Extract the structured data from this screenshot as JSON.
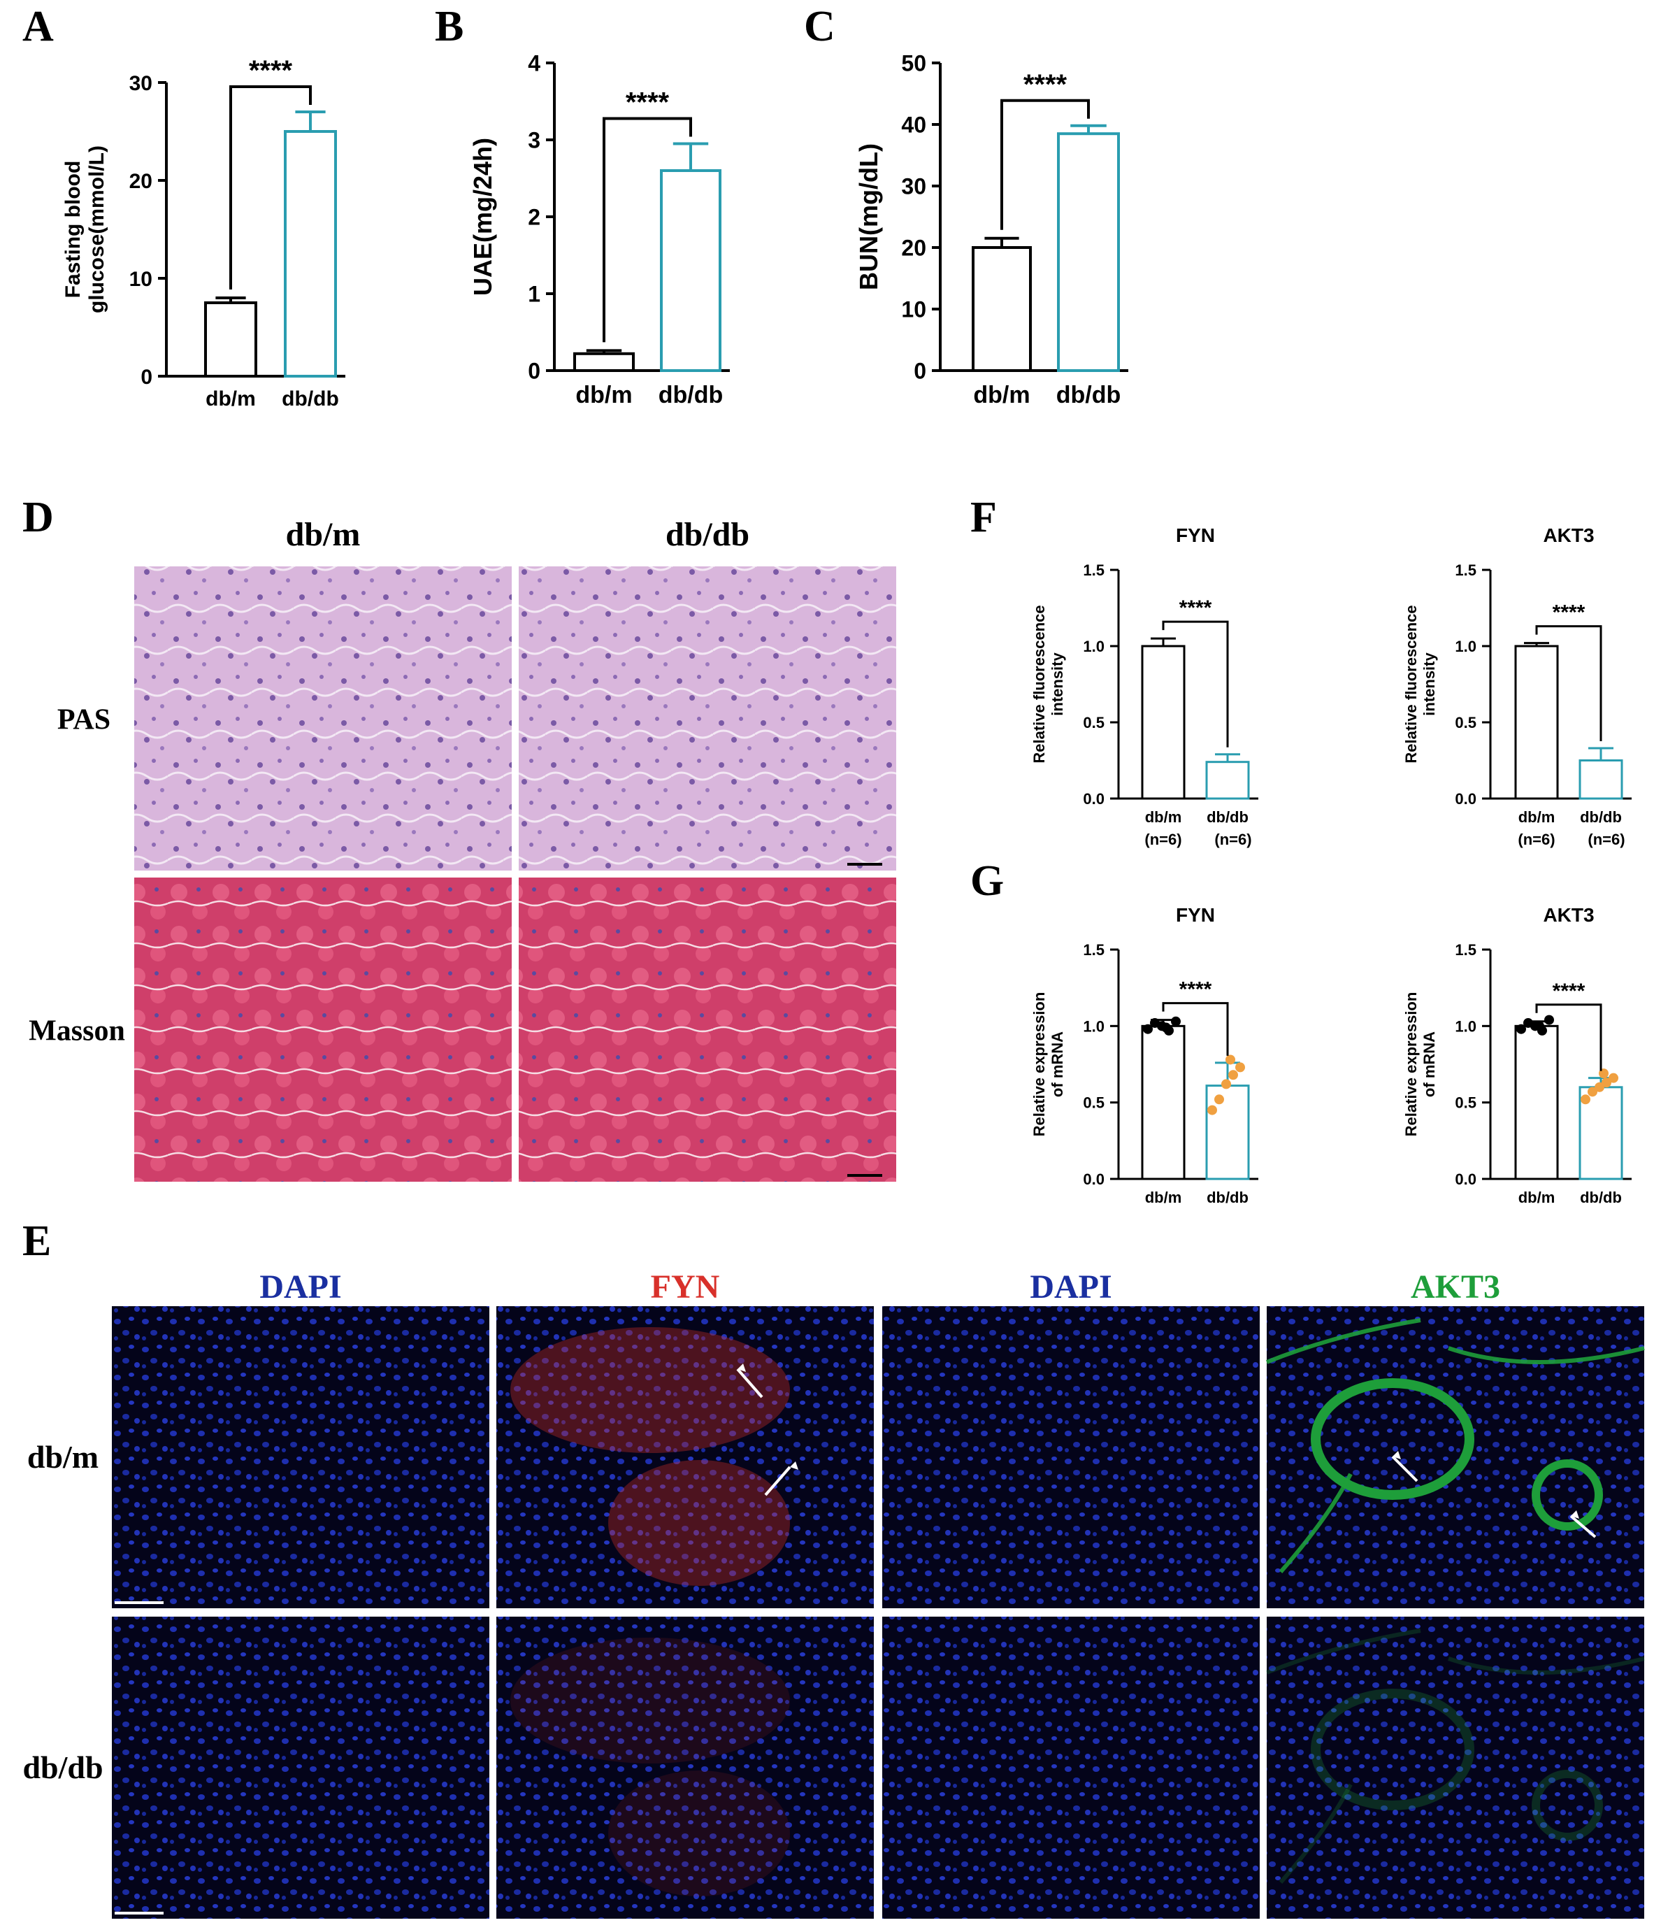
{
  "panel_letters": {
    "A": "A",
    "B": "B",
    "C": "C",
    "D": "D",
    "E": "E",
    "F": "F",
    "G": "G"
  },
  "colors": {
    "control": "#000000",
    "treated": "#2a9db0",
    "dots_treated": "#f0a040",
    "dapi": "#1a2fa0",
    "fyn": "#d8302a",
    "akt3": "#1e9e3a"
  },
  "panel_D": {
    "col_labels": [
      "db/m",
      "db/db"
    ],
    "row_labels": [
      "PAS",
      "Masson"
    ]
  },
  "panel_E": {
    "col_labels": [
      "DAPI",
      "FYN",
      "DAPI",
      "AKT3"
    ],
    "row_labels": [
      "db/m",
      "db/db"
    ]
  },
  "chart_data": [
    {
      "id": "A",
      "type": "bar",
      "categories": [
        "db/m",
        "db/db"
      ],
      "values": [
        7.5,
        25
      ],
      "errors": [
        0.5,
        2.0
      ],
      "ylabel": [
        "Fasting blood",
        "glucose(mmol/L)"
      ],
      "ylim": [
        0,
        30
      ],
      "yticks": [
        0,
        10,
        20,
        30
      ],
      "significance": "****"
    },
    {
      "id": "B",
      "type": "bar",
      "categories": [
        "db/m",
        "db/db"
      ],
      "values": [
        0.22,
        2.6
      ],
      "errors": [
        0.04,
        0.35
      ],
      "ylabel": [
        "UAE(mg/24h)"
      ],
      "ylim": [
        0,
        4
      ],
      "yticks": [
        0,
        1,
        2,
        3,
        4
      ],
      "significance": "****"
    },
    {
      "id": "C",
      "type": "bar",
      "categories": [
        "db/m",
        "db/db"
      ],
      "values": [
        20,
        38.5
      ],
      "errors": [
        1.5,
        1.3
      ],
      "ylabel": [
        "BUN(mg/dL)"
      ],
      "ylim": [
        0,
        50
      ],
      "yticks": [
        0,
        10,
        20,
        30,
        40,
        50
      ],
      "significance": "****"
    },
    {
      "id": "F-FYN",
      "type": "bar",
      "title": "FYN",
      "categories": [
        "db/m",
        "db/db"
      ],
      "sublabels": [
        "(n=6)",
        "(n=6)"
      ],
      "values": [
        1.0,
        0.24
      ],
      "errors": [
        0.05,
        0.05
      ],
      "ylabel": [
        "Relative fluorescence",
        "intensity"
      ],
      "ylim": [
        0,
        1.5
      ],
      "yticks": [
        "0.0",
        "0.5",
        "1.0",
        "1.5"
      ],
      "significance": "****"
    },
    {
      "id": "F-AKT3",
      "type": "bar",
      "title": "AKT3",
      "categories": [
        "db/m",
        "db/db"
      ],
      "sublabels": [
        "(n=6)",
        "(n=6)"
      ],
      "values": [
        1.0,
        0.25
      ],
      "errors": [
        0.02,
        0.08
      ],
      "ylabel": [
        "Relative fluorescence",
        "intensity"
      ],
      "ylim": [
        0,
        1.5
      ],
      "yticks": [
        "0.0",
        "0.5",
        "1.0",
        "1.5"
      ],
      "significance": "****"
    },
    {
      "id": "G-FYN",
      "type": "bar",
      "title": "FYN",
      "categories": [
        "db/m",
        "db/db"
      ],
      "values": [
        1.0,
        0.61
      ],
      "errors": [
        0.04,
        0.15
      ],
      "points": [
        [
          0.98,
          1.02,
          1.0,
          0.97,
          1.03,
          0.99
        ],
        [
          0.45,
          0.52,
          0.62,
          0.68,
          0.73,
          0.78
        ]
      ],
      "ylabel": [
        "Relative expression",
        "of mRNA"
      ],
      "ylim": [
        0,
        1.5
      ],
      "yticks": [
        "0.0",
        "0.5",
        "1.0",
        "1.5"
      ],
      "significance": "****"
    },
    {
      "id": "G-AKT3",
      "type": "bar",
      "title": "AKT3",
      "categories": [
        "db/m",
        "db/db"
      ],
      "values": [
        1.0,
        0.6
      ],
      "errors": [
        0.03,
        0.06
      ],
      "points": [
        [
          0.98,
          1.02,
          1.0,
          0.97,
          1.04,
          1.0
        ],
        [
          0.52,
          0.57,
          0.6,
          0.63,
          0.66,
          0.69
        ]
      ],
      "ylabel": [
        "Relative expression",
        "of mRNA"
      ],
      "ylim": [
        0,
        1.5
      ],
      "yticks": [
        "0.0",
        "0.5",
        "1.0",
        "1.5"
      ],
      "significance": "****"
    }
  ]
}
